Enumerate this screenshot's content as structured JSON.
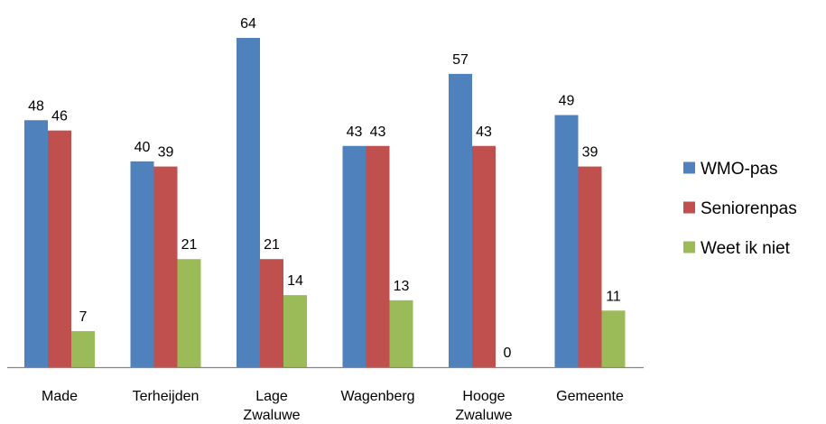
{
  "chart_data": {
    "type": "bar",
    "categories": [
      "Made",
      "Terheijden",
      "Lage Zwaluwe",
      "Wagenberg",
      "Hooge Zwaluwe",
      "Gemeente"
    ],
    "category_lines": [
      [
        "Made"
      ],
      [
        "Terheijden"
      ],
      [
        "Lage",
        "Zwaluwe"
      ],
      [
        "Wagenberg"
      ],
      [
        "Hooge",
        "Zwaluwe"
      ],
      [
        "Gemeente"
      ]
    ],
    "series": [
      {
        "name": "WMO-pas",
        "color": "#4F81BD",
        "values": [
          48,
          40,
          64,
          43,
          57,
          49
        ]
      },
      {
        "name": "Seniorenpas",
        "color": "#C0504D",
        "values": [
          46,
          39,
          21,
          43,
          43,
          39
        ]
      },
      {
        "name": "Weet ik niet",
        "color": "#9BBB59",
        "values": [
          7,
          21,
          14,
          13,
          0,
          11
        ]
      }
    ],
    "title": "",
    "xlabel": "",
    "ylabel": "",
    "ylim": [
      0,
      64
    ],
    "grid": false,
    "data_labels": true,
    "legend_position": "right"
  }
}
